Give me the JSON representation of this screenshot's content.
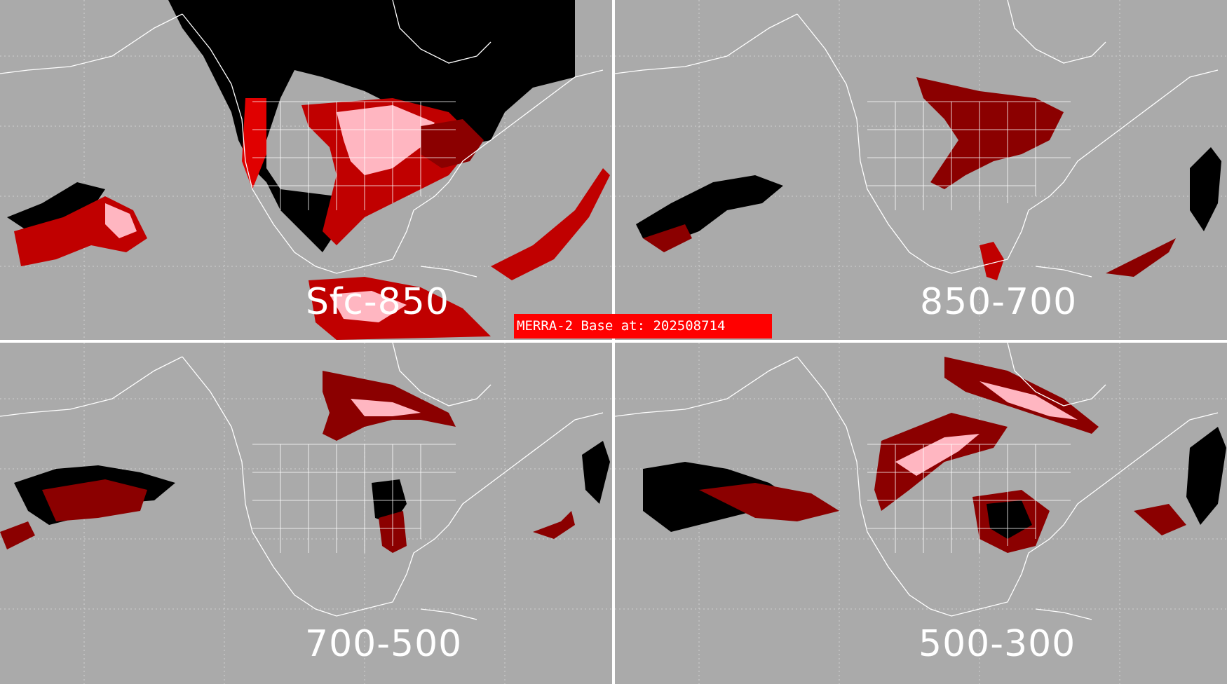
{
  "banner": {
    "text": "MERRA-2 Base at: 202508714"
  },
  "panels": [
    {
      "label": "Sfc-850"
    },
    {
      "label": "850-700"
    },
    {
      "label": "700-500"
    },
    {
      "label": "500-300"
    }
  ],
  "colors": {
    "background": "#aaaaaa",
    "outline": "#ffffff",
    "dark_red": "#8b0000",
    "red": "#e00000",
    "pink": "#ffb6c1",
    "black": "#000000",
    "banner": "#ff0000"
  }
}
